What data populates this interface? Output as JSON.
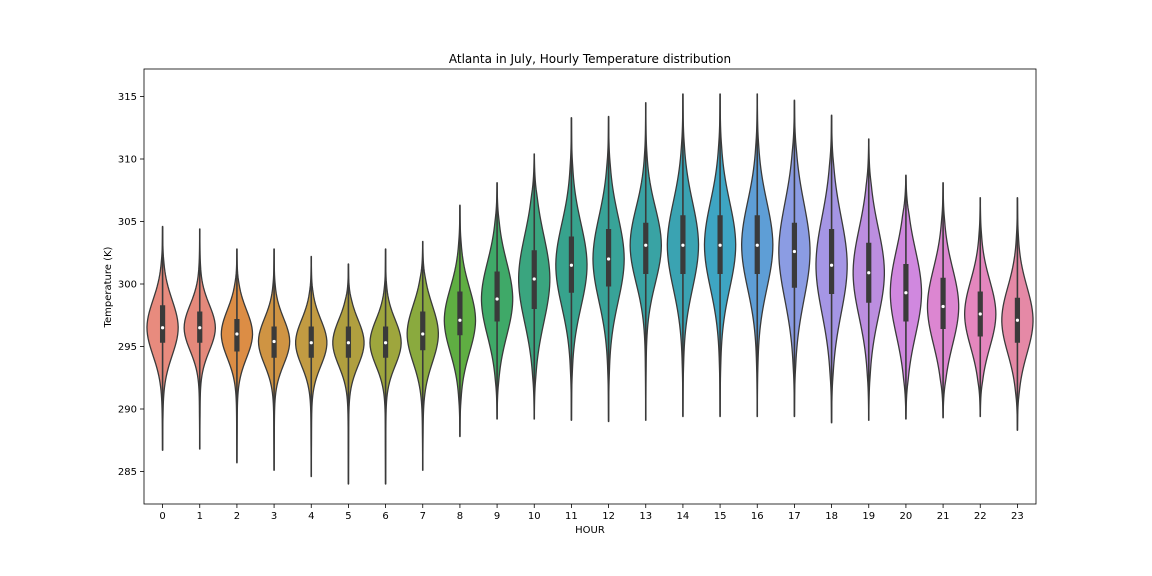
{
  "chart_data": {
    "type": "violin",
    "title": "Atlanta in July, Hourly Temperature distribution",
    "xlabel": "HOUR",
    "ylabel": "Temperature (K)",
    "ylim": [
      282.4,
      317.2
    ],
    "yticks": [
      285,
      290,
      295,
      300,
      305,
      310,
      315
    ],
    "categories": [
      "0",
      "1",
      "2",
      "3",
      "4",
      "5",
      "6",
      "7",
      "8",
      "9",
      "10",
      "11",
      "12",
      "13",
      "14",
      "15",
      "16",
      "17",
      "18",
      "19",
      "20",
      "21",
      "22",
      "23"
    ],
    "series": [
      {
        "hour": "0",
        "min": 286.7,
        "q1": 295.3,
        "median": 296.5,
        "q3": 298.3,
        "max": 304.6,
        "color": "#e88b7e"
      },
      {
        "hour": "1",
        "min": 286.8,
        "q1": 295.3,
        "median": 296.5,
        "q3": 297.8,
        "max": 304.4,
        "color": "#e4897b"
      },
      {
        "hour": "2",
        "min": 285.7,
        "q1": 294.6,
        "median": 296.0,
        "q3": 297.2,
        "max": 302.8,
        "color": "#dc8d45"
      },
      {
        "hour": "3",
        "min": 285.1,
        "q1": 294.1,
        "median": 295.4,
        "q3": 296.6,
        "max": 302.8,
        "color": "#cf9443"
      },
      {
        "hour": "4",
        "min": 284.6,
        "q1": 294.1,
        "median": 295.3,
        "q3": 296.6,
        "max": 302.2,
        "color": "#c29b42"
      },
      {
        "hour": "5",
        "min": 284.0,
        "q1": 294.1,
        "median": 295.3,
        "q3": 296.6,
        "max": 301.6,
        "color": "#b09f3f"
      },
      {
        "hour": "6",
        "min": 284.0,
        "q1": 294.1,
        "median": 295.3,
        "q3": 296.6,
        "max": 302.8,
        "color": "#9ea63d"
      },
      {
        "hour": "7",
        "min": 285.1,
        "q1": 294.7,
        "median": 296.0,
        "q3": 297.8,
        "max": 303.4,
        "color": "#8aaa3e"
      },
      {
        "hour": "8",
        "min": 287.8,
        "q1": 295.9,
        "median": 297.1,
        "q3": 299.4,
        "max": 306.3,
        "color": "#5fae42"
      },
      {
        "hour": "9",
        "min": 289.2,
        "q1": 297.0,
        "median": 298.8,
        "q3": 301.0,
        "max": 308.1,
        "color": "#3fa968"
      },
      {
        "hour": "10",
        "min": 289.2,
        "q1": 298.0,
        "median": 300.4,
        "q3": 302.7,
        "max": 310.4,
        "color": "#3aa57f"
      },
      {
        "hour": "11",
        "min": 289.1,
        "q1": 299.3,
        "median": 301.5,
        "q3": 303.8,
        "max": 313.3,
        "color": "#37a38d"
      },
      {
        "hour": "12",
        "min": 289.0,
        "q1": 299.8,
        "median": 302.0,
        "q3": 304.4,
        "max": 313.4,
        "color": "#38a398"
      },
      {
        "hour": "13",
        "min": 289.1,
        "q1": 300.8,
        "median": 303.1,
        "q3": 304.9,
        "max": 314.5,
        "color": "#39a3a4"
      },
      {
        "hour": "14",
        "min": 289.4,
        "q1": 300.8,
        "median": 303.1,
        "q3": 305.5,
        "max": 315.2,
        "color": "#3aa3b2"
      },
      {
        "hour": "15",
        "min": 289.4,
        "q1": 300.8,
        "median": 303.1,
        "q3": 305.5,
        "max": 315.2,
        "color": "#3ea5c3"
      },
      {
        "hour": "16",
        "min": 289.4,
        "q1": 300.8,
        "median": 303.1,
        "q3": 305.5,
        "max": 315.2,
        "color": "#5e9ed6"
      },
      {
        "hour": "17",
        "min": 289.4,
        "q1": 299.7,
        "median": 302.6,
        "q3": 304.9,
        "max": 314.7,
        "color": "#8b9ce3"
      },
      {
        "hour": "18",
        "min": 288.9,
        "q1": 299.2,
        "median": 301.5,
        "q3": 304.4,
        "max": 313.5,
        "color": "#a596e5"
      },
      {
        "hour": "19",
        "min": 289.1,
        "q1": 298.5,
        "median": 300.9,
        "q3": 303.3,
        "max": 311.6,
        "color": "#bc8ee0"
      },
      {
        "hour": "20",
        "min": 289.2,
        "q1": 297.0,
        "median": 299.3,
        "q3": 301.6,
        "max": 308.7,
        "color": "#d088df"
      },
      {
        "hour": "21",
        "min": 289.3,
        "q1": 296.4,
        "median": 298.2,
        "q3": 300.5,
        "max": 308.1,
        "color": "#dc86d1"
      },
      {
        "hour": "22",
        "min": 289.4,
        "q1": 295.8,
        "median": 297.6,
        "q3": 299.4,
        "max": 306.9,
        "color": "#e487be"
      },
      {
        "hour": "23",
        "min": 288.3,
        "q1": 295.3,
        "median": 297.1,
        "q3": 298.9,
        "max": 306.9,
        "color": "#e589a6"
      }
    ],
    "grid": false,
    "legend": "none"
  }
}
